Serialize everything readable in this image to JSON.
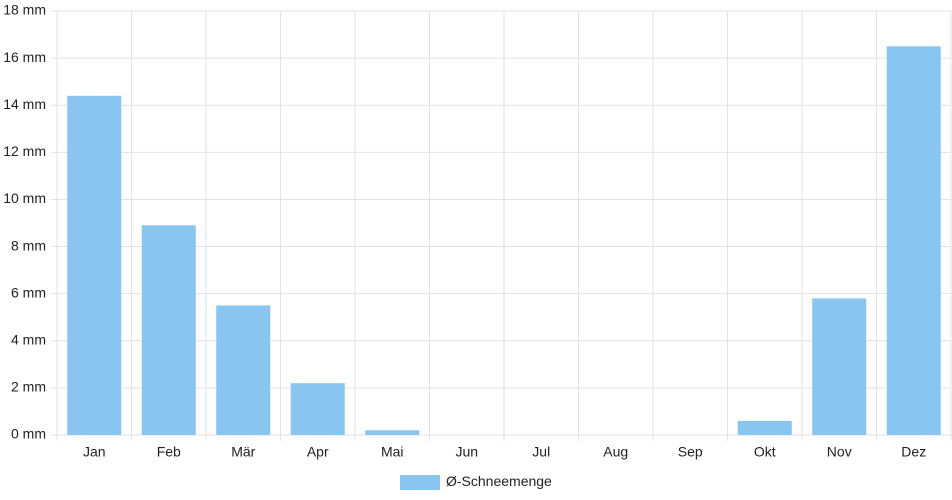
{
  "chart_data": {
    "type": "bar",
    "categories": [
      "Jan",
      "Feb",
      "Mär",
      "Apr",
      "Mai",
      "Jun",
      "Jul",
      "Aug",
      "Sep",
      "Okt",
      "Nov",
      "Dez"
    ],
    "series": [
      {
        "name": "Ø-Schneemenge",
        "color": "#88c5f1",
        "values": [
          14.4,
          8.9,
          5.5,
          2.2,
          0.2,
          0,
          0,
          0,
          0,
          0.6,
          5.8,
          16.5
        ]
      }
    ],
    "ylim": [
      0,
      18
    ],
    "yticks": [
      {
        "value": 0,
        "label": "0 mm"
      },
      {
        "value": 2,
        "label": "2 mm"
      },
      {
        "value": 4,
        "label": "4 mm"
      },
      {
        "value": 6,
        "label": "6 mm"
      },
      {
        "value": 8,
        "label": "8 mm"
      },
      {
        "value": 10,
        "label": "10 mm"
      },
      {
        "value": 12,
        "label": "12 mm"
      },
      {
        "value": 14,
        "label": "14 mm"
      },
      {
        "value": 16,
        "label": "16 mm"
      },
      {
        "value": 18,
        "label": "18 mm"
      }
    ],
    "grid": true,
    "legend": "bottom"
  }
}
